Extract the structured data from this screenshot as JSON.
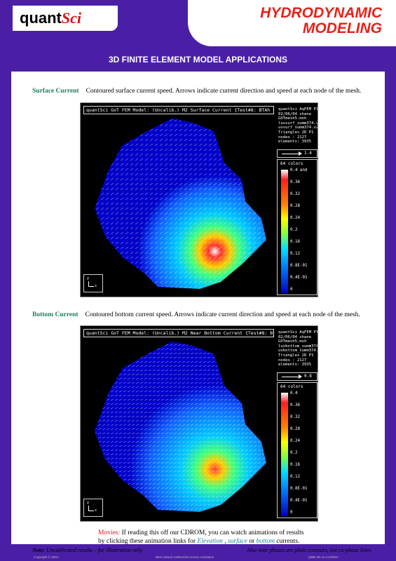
{
  "header": {
    "logo_part1": "quant",
    "logo_part2": "Sci",
    "title_line1": "HYDRODYNAMIC",
    "title_line2": "MODELING",
    "subtitle": "3D FINITE ELEMENT MODEL APPLICATIONS"
  },
  "sections": [
    {
      "label": "Surface Current",
      "caption": "Contoured surface current speed. Arrows indicate current direction and speed at each node of the mesh.",
      "plot": {
        "title": "quantSci GoT FEM Model: (Uncalib.) M2 Surface Current {Test#8: BTAh",
        "info": [
          "quantSci AqFEM Plot",
          "02/06/04  shane",
          "GOTmesh5.msh",
          "luvsurf_summ374.v2",
          "uvsurf_summ374.v2r",
          "Triangles 2D P1",
          "nodes    :  2127",
          "elements:  3935"
        ],
        "arrow_scale": "1.4",
        "legend_title": "64 colors",
        "legend_labels": [
          "0.4 and",
          "0.36",
          "0.32",
          "0.28",
          "0.24",
          "0.2",
          "0.16",
          "0.12",
          "0.8E-01",
          "0.4E-01",
          "0"
        ],
        "axis_y": "y",
        "axis_x": "x"
      }
    },
    {
      "label": "Bottom Current",
      "caption": "Contoured bottom current speed. Arrows indicate current direction and speed at each node of the mesh.",
      "plot": {
        "title": "quantSci GoT FEM Model: (Uncalib.) M2 Near Bottom Current {Test#8: Bt",
        "info": [
          "quantSci AqFEM Plot",
          "02/06/04  shane",
          "GOTmesh5.msh",
          "luvbottom_summ374.",
          "uvbottom_summ374.v",
          "Triangles 2D P1",
          "nodes    :  2127",
          "elements:  3935"
        ],
        "arrow_scale": "0.8",
        "legend_title": "64 colors",
        "legend_labels": [
          "0.4",
          "0.36",
          "0.32",
          "0.28",
          "0.24",
          "0.2",
          "0.16",
          "0.12",
          "0.8E-01",
          "0.4E-01",
          "0"
        ],
        "axis_y": "y",
        "axis_x": "x"
      }
    }
  ],
  "movies": {
    "label": "Movies:",
    "text1": " If reading this off our CDROM, you can watch animations of results",
    "text2": "by clicking these animation links for ",
    "link_elevation": "Elevation",
    "sep1": " , ",
    "link_surface": "surface",
    "sep2": "  or ",
    "link_bottom": "bottom",
    "text3": "  currents."
  },
  "notes": {
    "left_label": "Note:",
    "left_text": " Uncalibrated results – for illustration only.",
    "right_text": "Also note phases are plain contours, not  co-phase lines."
  },
  "footer": {
    "left": "Copyright © 2004",
    "center": "Best viewed 1280x1024 screen resolution",
    "right": "QMB 2D v1.3 2/2004"
  },
  "colors": {
    "brand_purple": "#4a1fa6",
    "title_red": "#e3231a",
    "label_green": "#1a7f5c"
  }
}
